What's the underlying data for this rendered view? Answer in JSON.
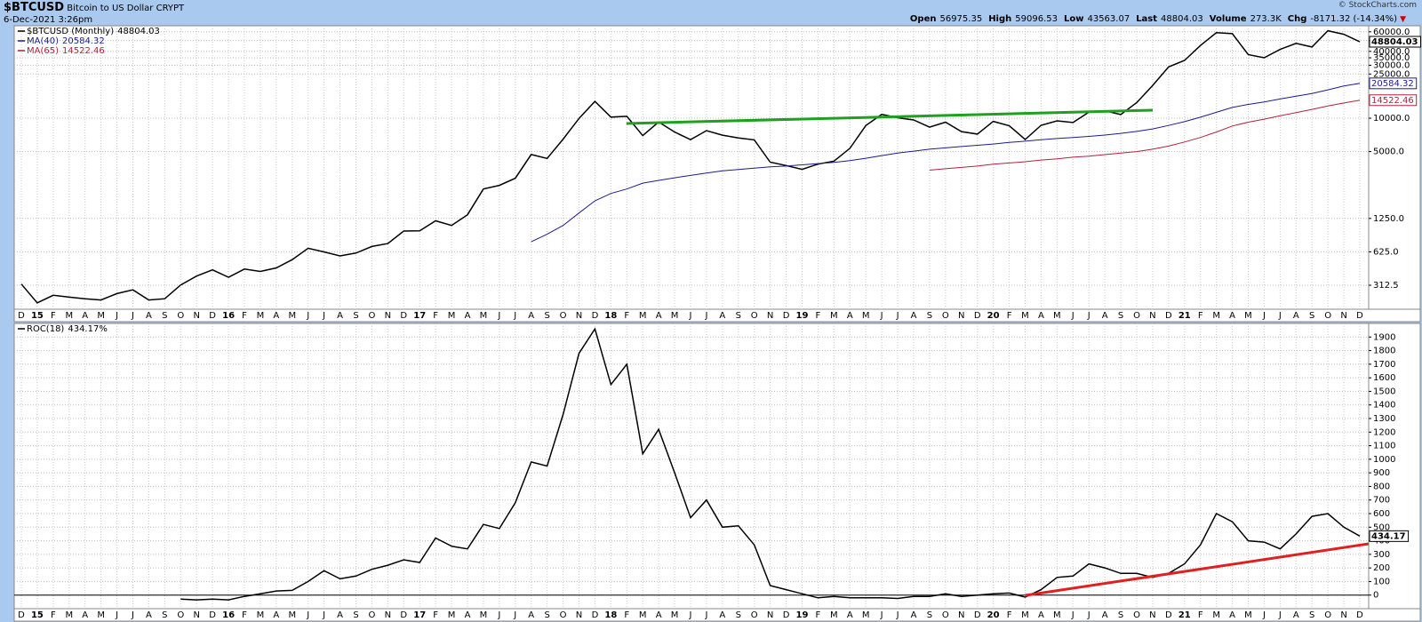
{
  "header": {
    "symbol": "$BTCUSD",
    "description": "Bitcoin to US Dollar",
    "exchange": "CRYPT",
    "date": "6-Dec-2021 3:26pm",
    "quote": [
      {
        "label": "Open",
        "value": "56975.35"
      },
      {
        "label": "High",
        "value": "59096.53"
      },
      {
        "label": "Low",
        "value": "43563.07"
      },
      {
        "label": "Last",
        "value": "48804.03"
      },
      {
        "label": "Volume",
        "value": "273.3K"
      },
      {
        "label": "Chg",
        "value": "-8171.32 (-14.34%)"
      }
    ],
    "copyright": "© StockCharts.com"
  },
  "chart_data": [
    {
      "type": "line",
      "log_scale": true,
      "grid": true,
      "categories": [
        "D",
        "15",
        "F",
        "M",
        "A",
        "M",
        "J",
        "J",
        "A",
        "S",
        "O",
        "N",
        "D",
        "16",
        "F",
        "M",
        "A",
        "M",
        "J",
        "J",
        "A",
        "S",
        "O",
        "N",
        "D",
        "17",
        "F",
        "M",
        "A",
        "M",
        "J",
        "J",
        "A",
        "S",
        "O",
        "N",
        "D",
        "18",
        "F",
        "M",
        "A",
        "M",
        "J",
        "J",
        "A",
        "S",
        "O",
        "N",
        "D",
        "19",
        "F",
        "M",
        "A",
        "M",
        "J",
        "J",
        "A",
        "S",
        "O",
        "N",
        "D",
        "20",
        "F",
        "M",
        "A",
        "M",
        "J",
        "J",
        "A",
        "S",
        "O",
        "N",
        "D",
        "21",
        "F",
        "M",
        "A",
        "M",
        "J",
        "J",
        "A",
        "S",
        "O",
        "N",
        "D"
      ],
      "ylim": [
        190,
        68000
      ],
      "yticks": [
        {
          "value": 60000,
          "label": "60000.0"
        },
        {
          "value": 50000,
          "label": "50000.0"
        },
        {
          "value": 40000,
          "label": "40000.0"
        },
        {
          "value": 35000,
          "label": "35000.0"
        },
        {
          "value": 30000,
          "label": "30000.0"
        },
        {
          "value": 25000,
          "label": "25000.0"
        },
        {
          "value": 10000,
          "label": "10000.0"
        },
        {
          "value": 5000,
          "label": "5000.0"
        },
        {
          "value": 1250,
          "label": "1250.0"
        },
        {
          "value": 625,
          "label": "625.0"
        },
        {
          "value": 312.5,
          "label": "312.5"
        }
      ],
      "series": [
        {
          "name": "$BTCUSD (Monthly)",
          "color": "#000000",
          "values": [
            320,
            217,
            254,
            244,
            236,
            230,
            263,
            284,
            230,
            236,
            314,
            378,
            430,
            369,
            437,
            416,
            448,
            531,
            673,
            624,
            574,
            609,
            698,
            742,
            963,
            966,
            1189,
            1080,
            1348,
            2300,
            2480,
            2875,
            4703,
            4339,
            6468,
            9946,
            14156,
            10221,
            10397,
            6973,
            9240,
            7494,
            6404,
            7730,
            7025,
            6625,
            6371,
            4017,
            3742,
            3457,
            3854,
            4105,
            5350,
            8574,
            10817,
            10085,
            9631,
            8294,
            9199,
            7569,
            7193,
            9350,
            8544,
            6424,
            8630,
            9455,
            9138,
            11333,
            11655,
            10779,
            13805,
            19713,
            28949,
            33114,
            45138,
            58918,
            57750,
            37332,
            35041,
            41626,
            47166,
            43791,
            61318,
            56951,
            48804.03
          ]
        },
        {
          "name": "MA(40)",
          "color": "#1c1c8c",
          "values": [
            null,
            null,
            null,
            null,
            null,
            null,
            null,
            null,
            null,
            null,
            null,
            null,
            null,
            null,
            null,
            null,
            null,
            null,
            null,
            null,
            null,
            null,
            null,
            null,
            null,
            null,
            null,
            null,
            null,
            null,
            null,
            null,
            770,
            900,
            1080,
            1400,
            1800,
            2100,
            2300,
            2600,
            2750,
            2900,
            3050,
            3200,
            3350,
            3450,
            3550,
            3650,
            3700,
            3800,
            3900,
            4000,
            4150,
            4350,
            4600,
            4850,
            5050,
            5250,
            5400,
            5550,
            5700,
            5850,
            6050,
            6200,
            6400,
            6550,
            6700,
            6850,
            7050,
            7300,
            7600,
            8000,
            8600,
            9300,
            10200,
            11300,
            12500,
            13300,
            14000,
            14900,
            15800,
            16700,
            18000,
            19500,
            20584.32
          ]
        },
        {
          "name": "MA(65)",
          "color": "#b3203c",
          "values": [
            null,
            null,
            null,
            null,
            null,
            null,
            null,
            null,
            null,
            null,
            null,
            null,
            null,
            null,
            null,
            null,
            null,
            null,
            null,
            null,
            null,
            null,
            null,
            null,
            null,
            null,
            null,
            null,
            null,
            null,
            null,
            null,
            null,
            null,
            null,
            null,
            null,
            null,
            null,
            null,
            null,
            null,
            null,
            null,
            null,
            null,
            null,
            null,
            null,
            null,
            null,
            null,
            null,
            null,
            null,
            null,
            null,
            3400,
            3500,
            3600,
            3700,
            3850,
            3950,
            4050,
            4200,
            4300,
            4450,
            4550,
            4700,
            4850,
            5000,
            5250,
            5600,
            6100,
            6700,
            7500,
            8500,
            9200,
            9800,
            10500,
            11200,
            12000,
            12900,
            13700,
            14522.46
          ]
        }
      ]
    },
    {
      "type": "line",
      "log_scale": false,
      "grid": true,
      "categories": [
        "D",
        "15",
        "F",
        "M",
        "A",
        "M",
        "J",
        "J",
        "A",
        "S",
        "O",
        "N",
        "D",
        "16",
        "F",
        "M",
        "A",
        "M",
        "J",
        "J",
        "A",
        "S",
        "O",
        "N",
        "D",
        "17",
        "F",
        "M",
        "A",
        "M",
        "J",
        "J",
        "A",
        "S",
        "O",
        "N",
        "D",
        "18",
        "F",
        "M",
        "A",
        "M",
        "J",
        "J",
        "A",
        "S",
        "O",
        "N",
        "D",
        "19",
        "F",
        "M",
        "A",
        "M",
        "J",
        "J",
        "A",
        "S",
        "O",
        "N",
        "D",
        "20",
        "F",
        "M",
        "A",
        "M",
        "J",
        "J",
        "A",
        "S",
        "O",
        "N",
        "D",
        "21",
        "F",
        "M",
        "A",
        "M",
        "J",
        "J",
        "A",
        "S",
        "O",
        "N",
        "D"
      ],
      "ylim": [
        -100,
        2000
      ],
      "yticks": [
        0,
        100,
        200,
        300,
        400,
        500,
        600,
        700,
        800,
        900,
        1000,
        1100,
        1200,
        1300,
        1400,
        1500,
        1600,
        1700,
        1800,
        1900
      ],
      "series": [
        {
          "name": "ROC(18)",
          "legend_value": "434.17%",
          "color": "#000000",
          "values": [
            null,
            null,
            null,
            null,
            null,
            null,
            null,
            null,
            null,
            null,
            -30,
            -35,
            -30,
            -35,
            -10,
            10,
            30,
            35,
            100,
            180,
            120,
            140,
            190,
            220,
            260,
            240,
            420,
            360,
            340,
            520,
            490,
            680,
            980,
            950,
            1330,
            1780,
            1960,
            1550,
            1700,
            1040,
            1220,
            900,
            570,
            700,
            500,
            510,
            370,
            70,
            40,
            10,
            -20,
            -10,
            -20,
            -20,
            -20,
            -25,
            -10,
            -10,
            10,
            -10,
            0,
            10,
            15,
            -15,
            40,
            130,
            140,
            230,
            200,
            160,
            160,
            130,
            160,
            230,
            370,
            600,
            540,
            400,
            390,
            340,
            450,
            580,
            600,
            500,
            434.17
          ]
        }
      ]
    }
  ]
}
